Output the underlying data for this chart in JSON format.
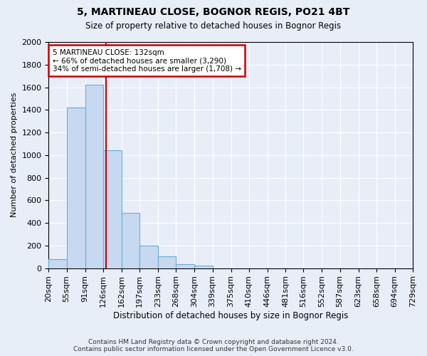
{
  "title1": "5, MARTINEAU CLOSE, BOGNOR REGIS, PO21 4BT",
  "title2": "Size of property relative to detached houses in Bognor Regis",
  "xlabel": "Distribution of detached houses by size in Bognor Regis",
  "ylabel": "Number of detached properties",
  "bar_edges": [
    20,
    55,
    91,
    126,
    162,
    197,
    233,
    268,
    304,
    339,
    375,
    410,
    446,
    481,
    516,
    552,
    587,
    623,
    658,
    694,
    729
  ],
  "bar_heights": [
    80,
    1420,
    1620,
    1040,
    490,
    200,
    105,
    35,
    25,
    0,
    0,
    0,
    0,
    0,
    0,
    0,
    0,
    0,
    0,
    0
  ],
  "bar_color": "#c6d9f0",
  "bar_edgecolor": "#6baed6",
  "property_size": 132,
  "vline_color": "#cc0000",
  "annotation_line1": "5 MARTINEAU CLOSE: 132sqm",
  "annotation_line2": "← 66% of detached houses are smaller (3,290)",
  "annotation_line3": "34% of semi-detached houses are larger (1,708) →",
  "annotation_box_edgecolor": "#cc0000",
  "background_color": "#e8eef8",
  "grid_color": "#ffffff",
  "ylim": [
    0,
    2000
  ],
  "tick_labels": [
    "20sqm",
    "55sqm",
    "91sqm",
    "126sqm",
    "162sqm",
    "197sqm",
    "233sqm",
    "268sqm",
    "304sqm",
    "339sqm",
    "375sqm",
    "410sqm",
    "446sqm",
    "481sqm",
    "516sqm",
    "552sqm",
    "587sqm",
    "623sqm",
    "658sqm",
    "694sqm",
    "729sqm"
  ],
  "footer": "Contains HM Land Registry data © Crown copyright and database right 2024.\nContains public sector information licensed under the Open Government Licence v3.0.",
  "yticks": [
    0,
    200,
    400,
    600,
    800,
    1000,
    1200,
    1400,
    1600,
    1800,
    2000
  ]
}
